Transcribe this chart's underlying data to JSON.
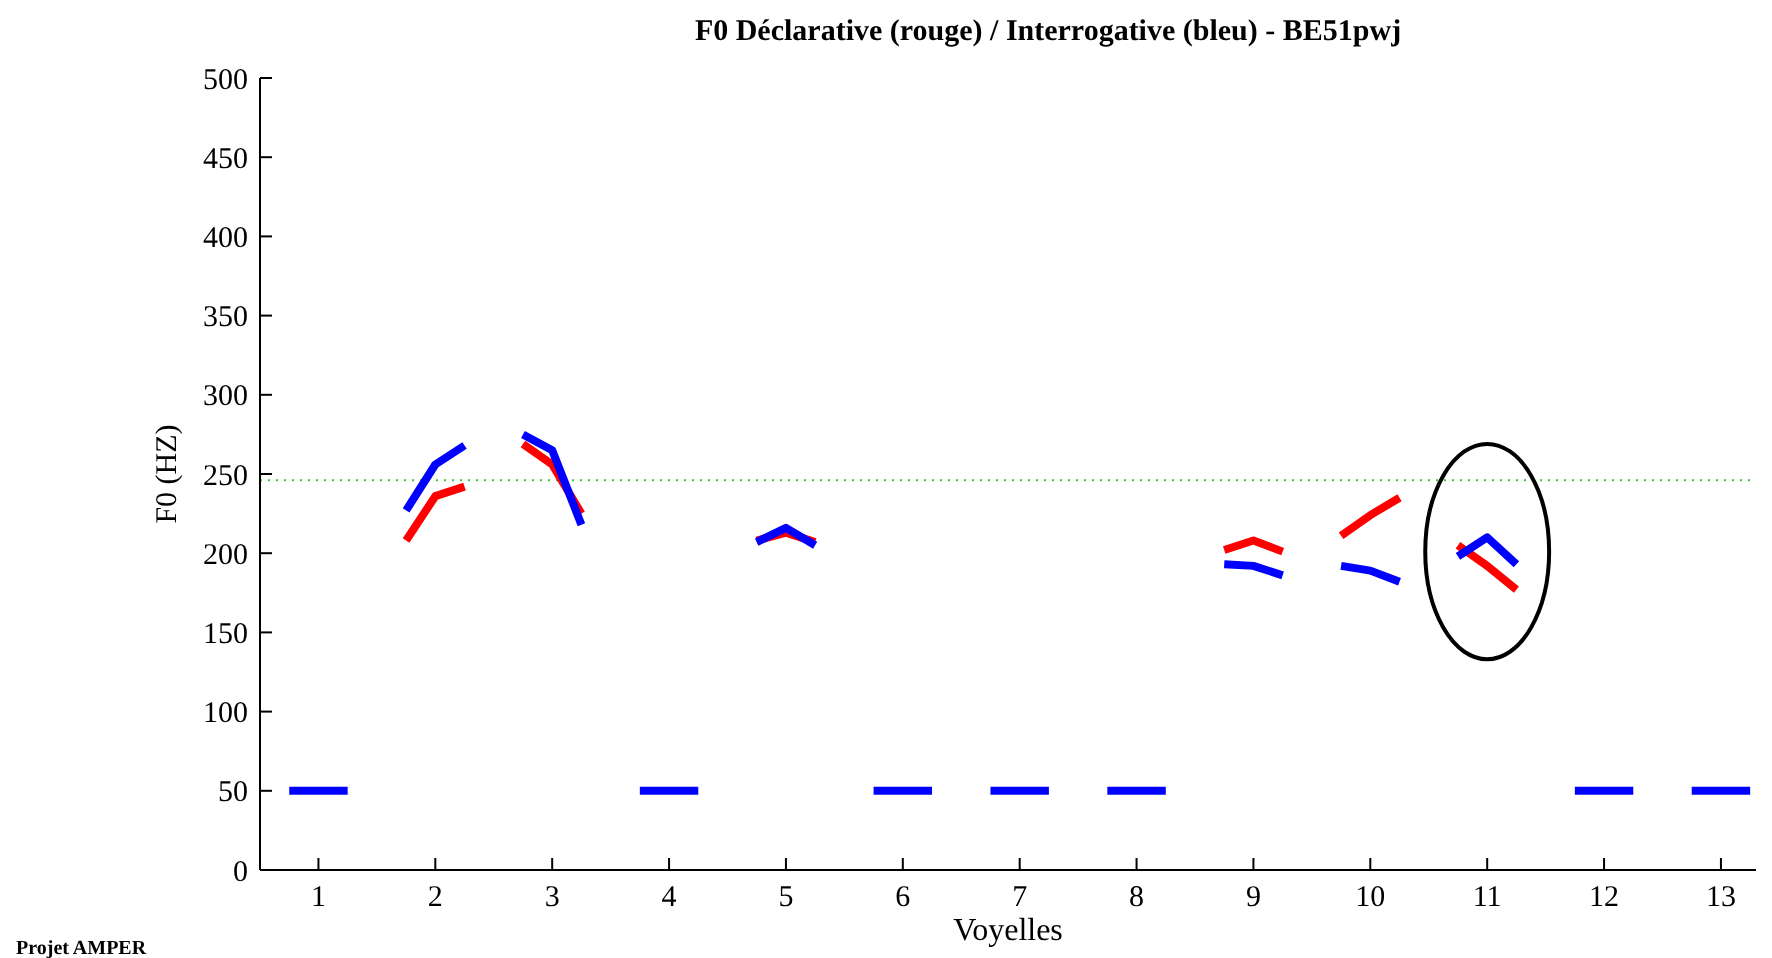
{
  "chart_data": {
    "type": "line",
    "title": "F0 Déclarative (rouge) / Interrogative (bleu) - BE51pwj",
    "xlabel": "Voyelles",
    "ylabel": "F0 (HZ)",
    "xlim": [
      0.5,
      13.3
    ],
    "xticks": [
      1,
      2,
      3,
      4,
      5,
      6,
      7,
      8,
      9,
      10,
      11,
      12,
      13
    ],
    "ylim": [
      0,
      500
    ],
    "yticks": [
      0,
      50,
      100,
      150,
      200,
      250,
      300,
      350,
      400,
      450,
      500
    ],
    "grid": false,
    "line_style": "solid",
    "series": [
      {
        "color": "#0000ff",
        "x": [
          0.75,
          1.25
        ],
        "values": [
          50,
          50
        ]
      },
      {
        "color": "#ff0000",
        "x": [
          1.75,
          2,
          2.25
        ],
        "values": [
          208,
          236,
          242
        ]
      },
      {
        "color": "#0000ff",
        "x": [
          1.75,
          2,
          2.25
        ],
        "values": [
          227,
          256,
          268
        ]
      },
      {
        "color": "#ff0000",
        "x": [
          2.75,
          3,
          3.25
        ],
        "values": [
          269,
          256,
          225
        ]
      },
      {
        "color": "#0000ff",
        "x": [
          2.75,
          3,
          3.25
        ],
        "values": [
          275,
          265,
          218
        ]
      },
      {
        "color": "#0000ff",
        "x": [
          3.75,
          4.25
        ],
        "values": [
          50,
          50
        ]
      },
      {
        "color": "#ff0000",
        "x": [
          4.75,
          5,
          5.25
        ],
        "values": [
          208,
          213,
          207
        ]
      },
      {
        "color": "#0000ff",
        "x": [
          4.75,
          5,
          5.25
        ],
        "values": [
          207,
          216,
          205
        ]
      },
      {
        "color": "#0000ff",
        "x": [
          5.75,
          6.25
        ],
        "values": [
          50,
          50
        ]
      },
      {
        "color": "#0000ff",
        "x": [
          6.75,
          7.25
        ],
        "values": [
          50,
          50
        ]
      },
      {
        "color": "#0000ff",
        "x": [
          7.75,
          8.25
        ],
        "values": [
          50,
          50
        ]
      },
      {
        "color": "#ff0000",
        "x": [
          8.75,
          9,
          9.25
        ],
        "values": [
          202,
          208,
          201
        ]
      },
      {
        "color": "#0000ff",
        "x": [
          8.75,
          9,
          9.25
        ],
        "values": [
          193,
          192,
          186
        ]
      },
      {
        "color": "#ff0000",
        "x": [
          9.75,
          10,
          10.25
        ],
        "values": [
          211,
          224,
          235
        ]
      },
      {
        "color": "#0000ff",
        "x": [
          9.75,
          10,
          10.25
        ],
        "values": [
          192,
          189,
          182
        ]
      },
      {
        "color": "#ff0000",
        "x": [
          10.75,
          11,
          11.25
        ],
        "values": [
          205,
          192,
          177
        ]
      },
      {
        "color": "#0000ff",
        "x": [
          10.75,
          11,
          11.25
        ],
        "values": [
          198,
          210,
          193
        ]
      },
      {
        "color": "#0000ff",
        "x": [
          11.75,
          12.25
        ],
        "values": [
          50,
          50
        ]
      },
      {
        "color": "#0000ff",
        "x": [
          12.75,
          13.25
        ],
        "values": [
          50,
          50
        ]
      }
    ],
    "ref_lines": [
      {
        "axis": "y",
        "value": 246,
        "color": "#33cc33",
        "line_style": "dotted"
      }
    ],
    "annotations": [
      "Projet AMPER"
    ]
  }
}
